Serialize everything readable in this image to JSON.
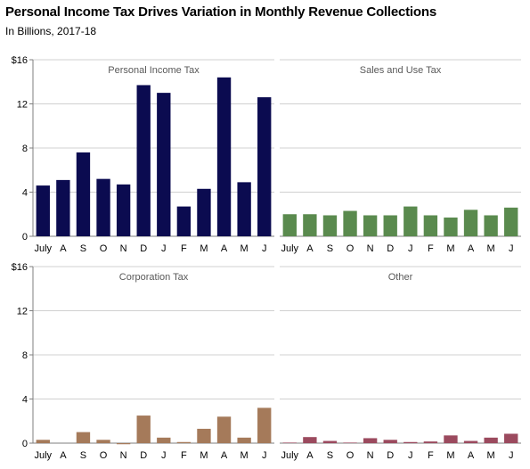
{
  "header": {
    "title": "Personal Income Tax Drives Variation in Monthly Revenue Collections",
    "subtitle": "In Billions, 2017-18"
  },
  "chart_data": [
    {
      "type": "bar",
      "title": "Personal Income Tax",
      "categories": [
        "July",
        "A",
        "S",
        "O",
        "N",
        "D",
        "J",
        "F",
        "M",
        "A",
        "M",
        "J"
      ],
      "values": [
        4.6,
        5.1,
        7.6,
        5.2,
        4.7,
        13.7,
        13.0,
        2.7,
        4.3,
        14.4,
        4.9,
        12.6
      ],
      "ylim": [
        0,
        16
      ],
      "yticks": [
        "0",
        "4",
        "8",
        "12",
        "$16"
      ],
      "color": "#0b0b50",
      "grid": true
    },
    {
      "type": "bar",
      "title": "Sales and Use Tax",
      "categories": [
        "July",
        "A",
        "S",
        "O",
        "N",
        "D",
        "J",
        "F",
        "M",
        "A",
        "M",
        "J"
      ],
      "values": [
        2.0,
        2.0,
        1.9,
        2.3,
        1.9,
        1.9,
        2.7,
        1.9,
        1.7,
        2.4,
        1.9,
        2.6
      ],
      "ylim": [
        0,
        16
      ],
      "color": "#5a8a4e",
      "grid": true
    },
    {
      "type": "bar",
      "title": "Corporation Tax",
      "categories": [
        "July",
        "A",
        "S",
        "O",
        "N",
        "D",
        "J",
        "F",
        "M",
        "A",
        "M",
        "J"
      ],
      "values": [
        0.3,
        0.0,
        1.0,
        0.3,
        -0.1,
        2.5,
        0.5,
        0.1,
        1.3,
        2.4,
        0.5,
        3.2
      ],
      "ylim": [
        0,
        16
      ],
      "yticks": [
        "0",
        "4",
        "8",
        "12",
        "$16"
      ],
      "color": "#a57a5a",
      "grid": true
    },
    {
      "type": "bar",
      "title": "Other",
      "categories": [
        "July",
        "A",
        "S",
        "O",
        "N",
        "D",
        "J",
        "F",
        "M",
        "A",
        "M",
        "J"
      ],
      "values": [
        0.05,
        0.55,
        0.2,
        0.05,
        0.45,
        0.3,
        0.1,
        0.15,
        0.7,
        0.2,
        0.5,
        0.85
      ],
      "ylim": [
        0,
        16
      ],
      "color": "#9b4a5e",
      "grid": true
    }
  ]
}
